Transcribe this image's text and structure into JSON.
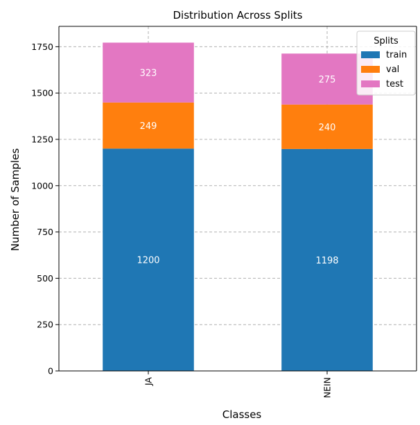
{
  "chart_data": {
    "type": "bar",
    "stacked": true,
    "title": "Distribution Across Splits",
    "xlabel": "Classes",
    "ylabel": "Number of Samples",
    "categories": [
      "JA",
      "NEIN"
    ],
    "series": [
      {
        "name": "train",
        "values": [
          1200,
          1198
        ],
        "color": "#1f77b4"
      },
      {
        "name": "val",
        "values": [
          249,
          240
        ],
        "color": "#ff7f0e"
      },
      {
        "name": "test",
        "values": [
          323,
          275
        ],
        "color": "#e377c2"
      }
    ],
    "ylim": [
      0,
      1860
    ],
    "yticks": [
      0,
      250,
      500,
      750,
      1000,
      1250,
      1500,
      1750
    ],
    "grid": true,
    "legend": {
      "title": "Splits",
      "position": "top-right"
    }
  }
}
